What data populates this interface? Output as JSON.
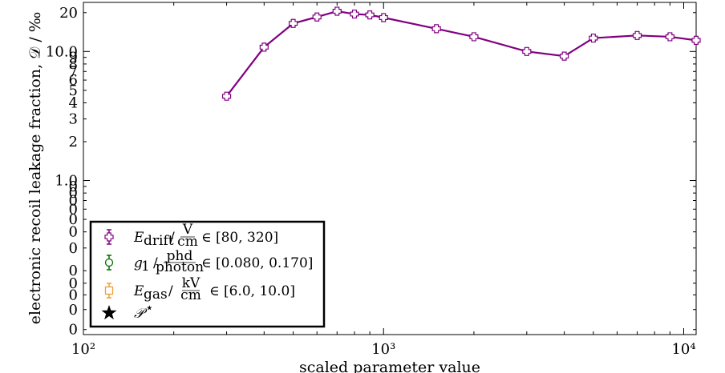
{
  "chart_data": {
    "type": "line",
    "xlabel": "scaled parameter value",
    "ylabel": "electronic recoil leakage fraction, 𝒟  / ‰",
    "xscale": "log",
    "yscale": "log",
    "xlim": [
      100,
      11000
    ],
    "ylim": [
      0.064,
      24
    ],
    "grid": false,
    "x_ticks": [
      {
        "value": 100,
        "label": "10²"
      },
      {
        "value": 1000,
        "label": "10³"
      },
      {
        "value": 10000,
        "label": "10⁴"
      }
    ],
    "y_ticks": [
      {
        "value": 0.07,
        "label": "0"
      },
      {
        "value": 0.1,
        "label": "0"
      },
      {
        "value": 0.13,
        "label": "0"
      },
      {
        "value": 0.16,
        "label": "0"
      },
      {
        "value": 0.2,
        "label": "0"
      },
      {
        "value": 0.3,
        "label": "0"
      },
      {
        "value": 0.4,
        "label": "0"
      },
      {
        "value": 0.5,
        "label": "0"
      },
      {
        "value": 0.6,
        "label": "0"
      },
      {
        "value": 0.7,
        "label": "0"
      },
      {
        "value": 0.8,
        "label": "0"
      },
      {
        "value": 0.9,
        "label": "0"
      },
      {
        "value": 1.0,
        "label": "1.0"
      },
      {
        "value": 2,
        "label": "2"
      },
      {
        "value": 3,
        "label": "3"
      },
      {
        "value": 4,
        "label": "4"
      },
      {
        "value": 5,
        "label": "5"
      },
      {
        "value": 6,
        "label": "6"
      },
      {
        "value": 7,
        "label": "7"
      },
      {
        "value": 8,
        "label": "8"
      },
      {
        "value": 9,
        "label": "9"
      },
      {
        "value": 10,
        "label": "10.0"
      },
      {
        "value": 20,
        "label": "20"
      }
    ],
    "series": [
      {
        "name": "E_drift / V/cm ∈ [80, 320]",
        "color": "#800080",
        "marker": "plus",
        "x": [
          300,
          400,
          500,
          600,
          700,
          800,
          900,
          1000,
          1500,
          2000,
          3000,
          4000,
          5000,
          7000,
          9000,
          11000
        ],
        "y": [
          4.5,
          10.8,
          16.5,
          18.5,
          20.5,
          19.5,
          19.2,
          18.3,
          15.0,
          13.0,
          10.0,
          9.2,
          12.7,
          13.3,
          13.0,
          12.2
        ]
      }
    ],
    "legend": {
      "position": "lower-left",
      "entries": [
        {
          "label": "E_drift / V/cm ∈ [80, 320]",
          "color": "#800080",
          "marker": "plus"
        },
        {
          "label": "g₁ / phd/photon ∈ [0.080, 0.170]",
          "color": "#007000",
          "marker": "circle"
        },
        {
          "label": "E_gas / kV/cm ∈ [6.0, 10.0]",
          "color": "#f0a030",
          "marker": "square"
        },
        {
          "label": "𝒫*",
          "color": "#000000",
          "marker": "star"
        }
      ]
    }
  }
}
